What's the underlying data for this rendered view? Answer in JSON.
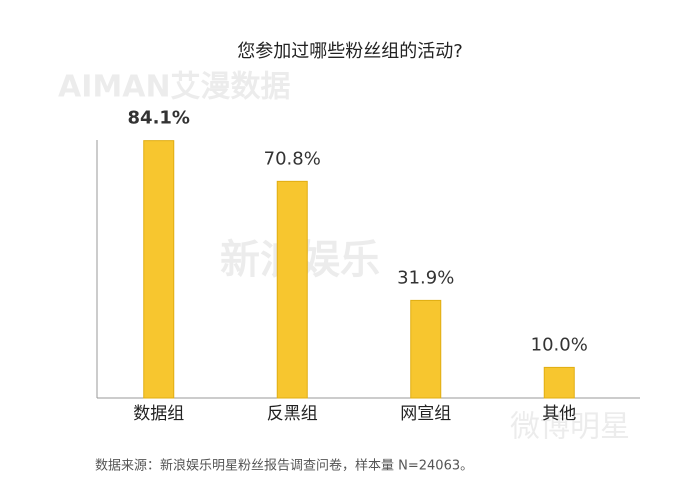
{
  "chart_data": {
    "type": "bar",
    "title": "您参加过哪些粉丝组的活动?",
    "categories": [
      "数据组",
      "反黑组",
      "网宣组",
      "其他"
    ],
    "values": [
      84.1,
      70.8,
      31.9,
      10.0
    ],
    "value_labels": [
      "84.1%",
      "70.8%",
      "31.9%",
      "10.0%"
    ],
    "color": "#f7c62f",
    "source": "数据来源：新浪娱乐明星粉丝报告调查问卷，样本量 N=24063。",
    "watermarks": [
      "AIMAN艾漫数据",
      "新浪娱乐",
      "微博明星"
    ]
  }
}
